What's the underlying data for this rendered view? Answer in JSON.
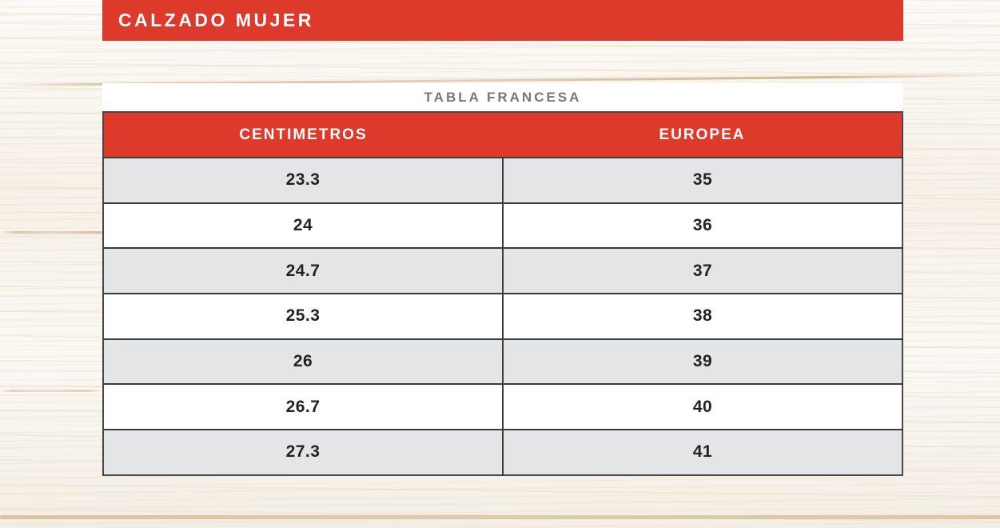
{
  "banner": {
    "title": "CALZADO MUJER"
  },
  "table": {
    "subtitle": "TABLA FRANCESA",
    "columns": [
      "CENTIMETROS",
      "EUROPEA"
    ],
    "rows": [
      [
        "23.3",
        "35"
      ],
      [
        "24",
        "36"
      ],
      [
        "24.7",
        "37"
      ],
      [
        "25.3",
        "38"
      ],
      [
        "26",
        "39"
      ],
      [
        "26.7",
        "40"
      ],
      [
        "27.3",
        "41"
      ]
    ]
  },
  "colors": {
    "accent_red": "#de3a2c",
    "row_alt_gray": "#e4e5e7",
    "row_white": "#ffffff",
    "body_text": "#222224",
    "subtitle_text": "#76777a",
    "border_dark": "#3c3c3e"
  }
}
